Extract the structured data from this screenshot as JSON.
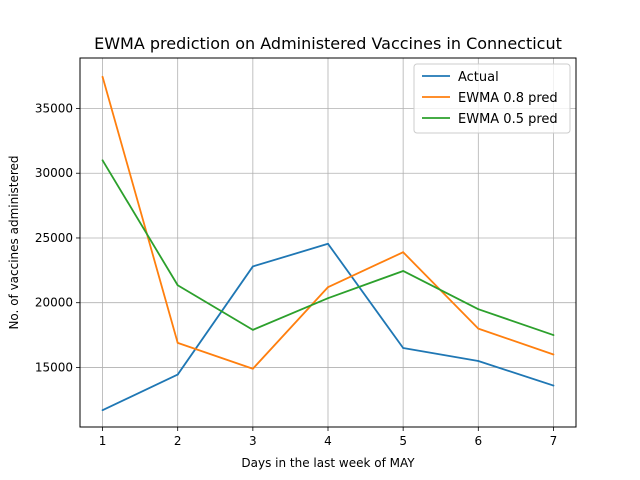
{
  "chart_data": {
    "type": "line",
    "title": "EWMA prediction on Administered Vaccines in Connecticut",
    "xlabel": "Days in the last week of MAY",
    "ylabel": "No. of vaccines administered",
    "x": [
      1,
      2,
      3,
      4,
      5,
      6,
      7
    ],
    "xlim": [
      0.7,
      7.3
    ],
    "ylim": [
      10400,
      38900
    ],
    "xticks": [
      1,
      2,
      3,
      4,
      5,
      6,
      7
    ],
    "yticks": [
      15000,
      20000,
      25000,
      30000,
      35000
    ],
    "grid": true,
    "legend_position": "top-right",
    "series": [
      {
        "name": "Actual",
        "color": "#1f77b4",
        "values": [
          11700,
          14450,
          22800,
          24550,
          16500,
          15500,
          13600
        ]
      },
      {
        "name": "EWMA 0.8 pred",
        "color": "#ff7f0e",
        "values": [
          37450,
          16900,
          14900,
          21200,
          23900,
          18000,
          16000
        ]
      },
      {
        "name": "EWMA 0.5 pred",
        "color": "#2ca02c",
        "values": [
          31000,
          21350,
          17900,
          20350,
          22450,
          19500,
          17500
        ]
      }
    ]
  }
}
